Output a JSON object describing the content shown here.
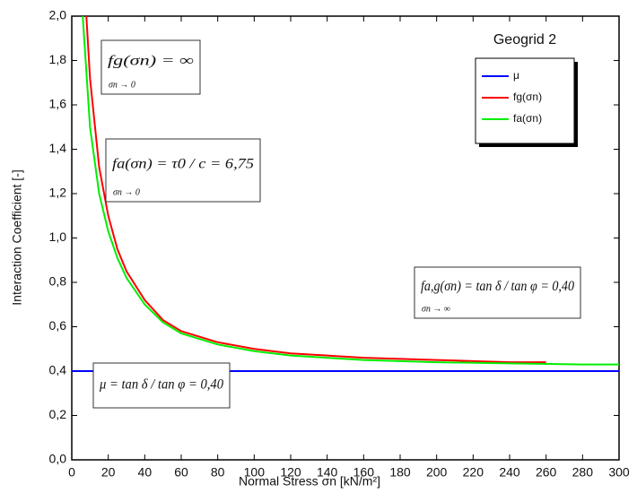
{
  "chart_data": {
    "type": "line",
    "title": "Geogrid 2",
    "x_label": "Normal Stress σn [kN/m²]",
    "y_label": "Interaction Coefficient [-]",
    "xlim": [
      0,
      300
    ],
    "ylim": [
      0,
      2.0
    ],
    "xticks": [
      0,
      20,
      40,
      60,
      80,
      100,
      120,
      140,
      160,
      180,
      200,
      220,
      240,
      260,
      280,
      300
    ],
    "yticks": [
      {
        "value": 0,
        "label": "0,0"
      },
      {
        "value": 0.2,
        "label": "0,2"
      },
      {
        "value": 0.4,
        "label": "0,4"
      },
      {
        "value": 0.6,
        "label": "0,6"
      },
      {
        "value": 0.8,
        "label": "0,8"
      },
      {
        "value": 1.0,
        "label": "1,0"
      },
      {
        "value": 1.2,
        "label": "1,2"
      },
      {
        "value": 1.4,
        "label": "1,4"
      },
      {
        "value": 1.6,
        "label": "1,6"
      },
      {
        "value": 1.8,
        "label": "1,8"
      },
      {
        "value": 2.0,
        "label": "2,0"
      }
    ],
    "legend": "top-right",
    "series": [
      {
        "name": "μ",
        "color": "#0000ff",
        "x": [
          0,
          300
        ],
        "values": [
          0.4,
          0.4
        ]
      },
      {
        "name": "fg(σn)",
        "color": "#ff0000",
        "x": [
          8,
          10,
          15,
          20,
          25,
          30,
          40,
          50,
          60,
          80,
          100,
          120,
          140,
          160,
          180,
          200,
          220,
          240,
          260
        ],
        "values": [
          2.0,
          1.72,
          1.32,
          1.1,
          0.95,
          0.85,
          0.72,
          0.63,
          0.58,
          0.53,
          0.5,
          0.48,
          0.47,
          0.46,
          0.455,
          0.45,
          0.445,
          0.44,
          0.44
        ]
      },
      {
        "name": "fa(σn)",
        "color": "#00ee00",
        "x": [
          6,
          8,
          10,
          15,
          20,
          25,
          30,
          40,
          50,
          60,
          80,
          100,
          120,
          140,
          160,
          180,
          200,
          240,
          280,
          300
        ],
        "values": [
          2.0,
          1.75,
          1.5,
          1.2,
          1.03,
          0.91,
          0.82,
          0.7,
          0.62,
          0.57,
          0.52,
          0.49,
          0.47,
          0.46,
          0.45,
          0.445,
          0.44,
          0.435,
          0.43,
          0.43
        ]
      }
    ],
    "annotations": [
      {
        "text": "fg(σn) = ∞",
        "limit": "σn → 0"
      },
      {
        "text": "fa(σn) = τ0 / c = 6,75",
        "limit": "σn → 0"
      },
      {
        "text": "fa,g(σn) = tan δ / tan φ = 0,40",
        "limit": "σn → ∞"
      },
      {
        "text": "μ = tan δ / tan φ = 0,40"
      }
    ]
  }
}
